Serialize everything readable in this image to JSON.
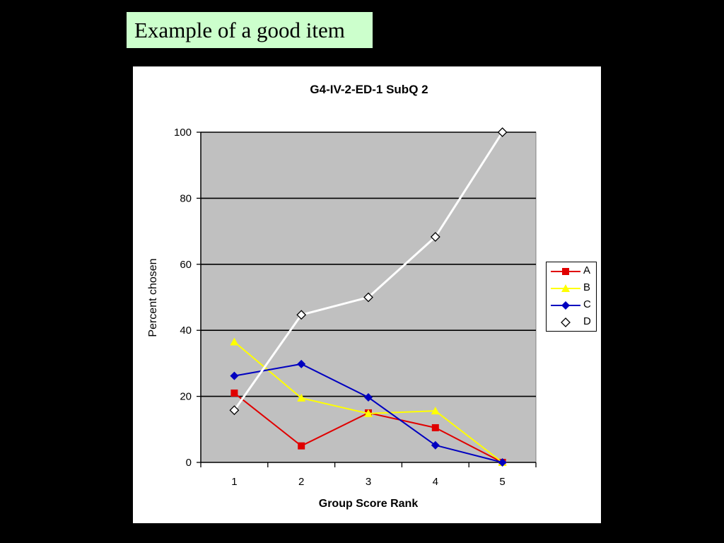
{
  "slide": {
    "title": "Example of a good item"
  },
  "chart_data": {
    "type": "line",
    "title": "G4-IV-2-ED-1 SubQ 2",
    "xlabel": "Group Score Rank",
    "ylabel": "Percent chosen",
    "x": [
      1,
      2,
      3,
      4,
      5
    ],
    "ylim": [
      0,
      100
    ],
    "yticks": [
      0,
      20,
      40,
      60,
      80,
      100
    ],
    "grid": "horizontal",
    "plot_background": "#c0c0c0",
    "legend_position": "right",
    "series": [
      {
        "name": "A",
        "color": "#e00000",
        "marker": "square",
        "values": [
          21,
          5,
          15,
          10.5,
          0
        ]
      },
      {
        "name": "B",
        "color": "#ffff00",
        "marker": "triangle",
        "values": [
          36.5,
          19.5,
          14.8,
          15.6,
          0
        ]
      },
      {
        "name": "C",
        "color": "#0000c0",
        "marker": "diamond",
        "values": [
          26.2,
          29.8,
          19.7,
          5.2,
          0
        ]
      },
      {
        "name": "D",
        "color": "#ffffff",
        "marker": "diamond-hollow",
        "values": [
          15.8,
          44.7,
          50,
          68.3,
          100
        ]
      }
    ]
  }
}
